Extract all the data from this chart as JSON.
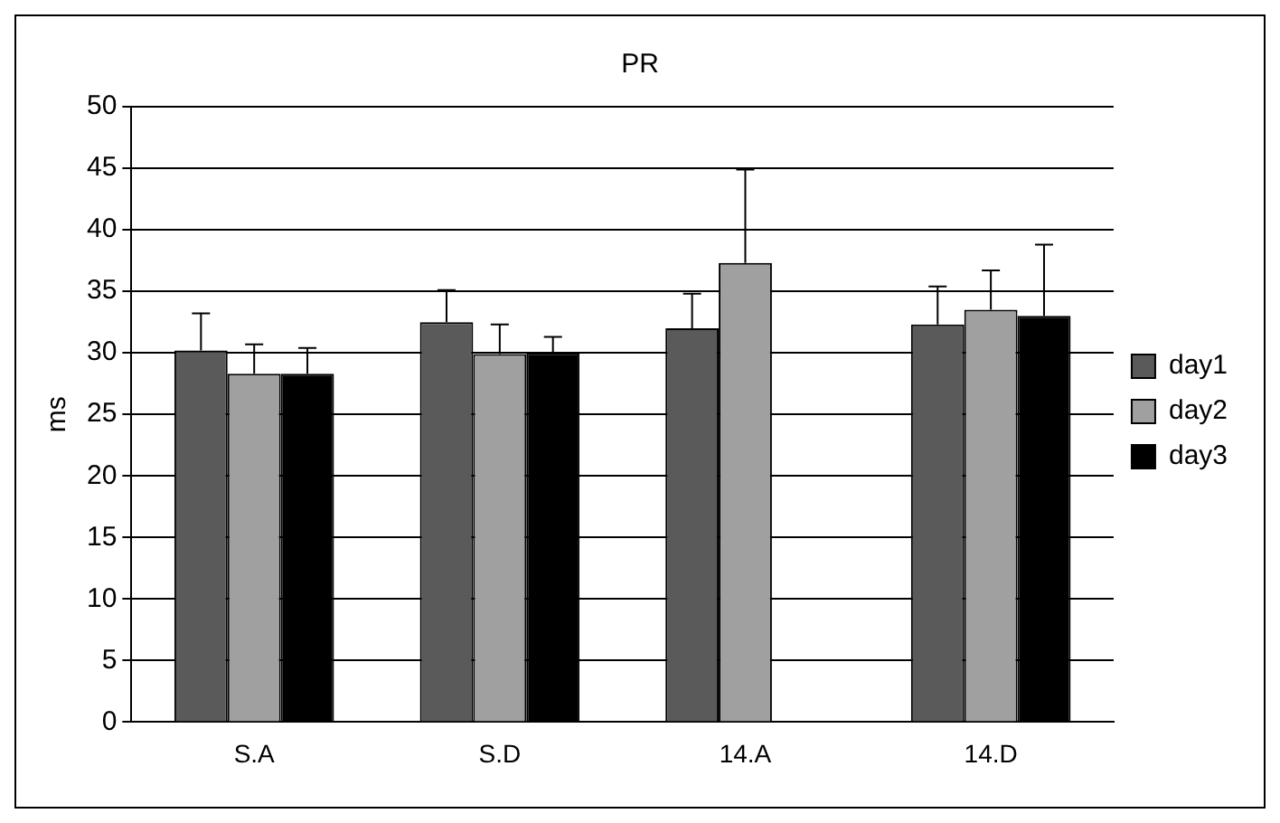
{
  "chart_data": {
    "type": "bar",
    "title": "PR",
    "ylabel": "ms",
    "categories": [
      "S.A",
      "S.D",
      "14.A",
      "14.D"
    ],
    "series": [
      {
        "name": "day1",
        "color": "#5a5a5a",
        "values": [
          30.2,
          32.5,
          32.0,
          32.3
        ],
        "errors": [
          [
            30.2,
            33.2
          ],
          [
            32.5,
            35.1
          ],
          [
            32.0,
            34.8
          ],
          [
            32.3,
            35.4
          ]
        ]
      },
      {
        "name": "day2",
        "color": "#a0a0a0",
        "values": [
          28.3,
          29.9,
          37.3,
          33.5
        ],
        "errors": [
          [
            28.3,
            30.7
          ],
          [
            29.9,
            32.3
          ],
          [
            37.3,
            44.9
          ],
          [
            33.5,
            36.7
          ]
        ]
      },
      {
        "name": "day3",
        "color": "#000000",
        "values": [
          28.3,
          30.0,
          null,
          33.0
        ],
        "errors": [
          [
            28.3,
            30.4
          ],
          [
            30.0,
            31.3
          ],
          null,
          [
            33.0,
            38.8
          ]
        ]
      }
    ],
    "ylim": [
      0,
      50
    ],
    "yticks": [
      0,
      5,
      10,
      15,
      20,
      25,
      30,
      35,
      40,
      45,
      50
    ],
    "grid": "y",
    "legend": "right"
  }
}
